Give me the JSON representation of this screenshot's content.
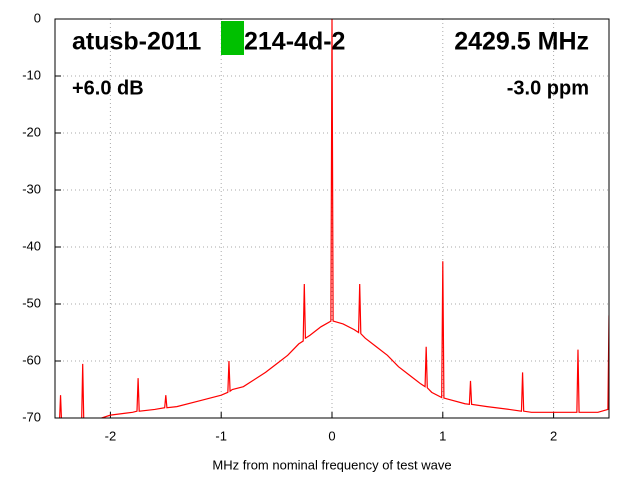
{
  "chart_data": {
    "type": "line",
    "xlabel": "MHz from nominal frequency of test wave",
    "annotations": [
      "atusb-2011",
      "214-4d-2",
      "2429.5 MHz",
      "+6.0 dB",
      "-3.0 ppm"
    ],
    "xlim": [
      -2.5,
      2.5
    ],
    "xticks": [
      -2,
      -1,
      0,
      1,
      2
    ],
    "ylim": [
      -70,
      0
    ],
    "yticks": [
      0,
      -10,
      -20,
      -30,
      -40,
      -50,
      -60,
      -70
    ],
    "grid": true,
    "series": [
      {
        "color": "#ff0000",
        "x": [
          -2.46,
          -2.45,
          -2.44,
          -2.26,
          -2.25,
          -2.24,
          -2.0,
          -1.8,
          -1.76,
          -1.75,
          -1.74,
          -1.6,
          -1.51,
          -1.5,
          -1.49,
          -1.4,
          -1.2,
          -1.0,
          -0.94,
          -0.93,
          -0.92,
          -0.9,
          -0.8,
          -0.6,
          -0.5,
          -0.4,
          -0.3,
          -0.26,
          -0.25,
          -0.24,
          -0.2,
          -0.1,
          -0.01,
          0,
          0.01,
          0.1,
          0.2,
          0.24,
          0.25,
          0.26,
          0.3,
          0.4,
          0.5,
          0.6,
          0.7,
          0.8,
          0.84,
          0.85,
          0.86,
          0.9,
          0.99,
          1.0,
          1.01,
          1.2,
          1.24,
          1.25,
          1.26,
          1.4,
          1.6,
          1.71,
          1.72,
          1.73,
          1.8,
          2.0,
          2.21,
          2.22,
          2.23,
          2.4,
          2.49,
          2.5
        ],
        "values": [
          -71,
          -66,
          -71,
          -71,
          -60.5,
          -71,
          -69.5,
          -69,
          -68.8,
          -63,
          -68.8,
          -68.5,
          -68.2,
          -66,
          -68.2,
          -68,
          -67,
          -66,
          -65.5,
          -60,
          -65.3,
          -65,
          -64.5,
          -62,
          -60.5,
          -59,
          -57,
          -56.5,
          -46.5,
          -56,
          -55.5,
          -54,
          -53,
          0,
          -53,
          -53.5,
          -54.5,
          -55,
          -46.5,
          -55.2,
          -56,
          -57.5,
          -59,
          -61,
          -62.5,
          -64,
          -64.5,
          -57.5,
          -64.7,
          -65.5,
          -66.4,
          -42.5,
          -66.5,
          -67.5,
          -67.6,
          -63.5,
          -67.6,
          -68,
          -68.5,
          -68.8,
          -62,
          -68.8,
          -69,
          -69,
          -69,
          -58,
          -69,
          -69,
          -68.5,
          -52
        ]
      }
    ]
  }
}
